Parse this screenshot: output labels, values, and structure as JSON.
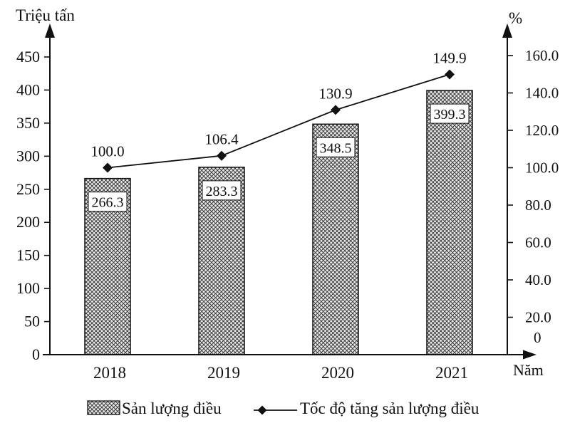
{
  "chart_data": {
    "type": "bar+line",
    "categories": [
      "2018",
      "2019",
      "2020",
      "2021"
    ],
    "series": [
      {
        "name": "Sản lượng điều",
        "type": "bar",
        "axis": "left",
        "values": [
          266.3,
          283.3,
          348.5,
          399.3
        ],
        "labels": [
          "266.3",
          "283.3",
          "348.5",
          "399.3"
        ]
      },
      {
        "name": "Tốc độ tăng sản lượng điều",
        "type": "line",
        "axis": "right",
        "values": [
          100.0,
          106.4,
          130.9,
          149.9
        ],
        "labels": [
          "100.0",
          "106.4",
          "130.9",
          "149.9"
        ]
      }
    ],
    "left_axis": {
      "title": "Triệu tấn",
      "min": 0,
      "max": 450,
      "step": 50,
      "tick_labels": [
        "0",
        "50",
        "100",
        "150",
        "200",
        "250",
        "300",
        "350",
        "400",
        "450"
      ]
    },
    "right_axis": {
      "title": "%",
      "min": 0,
      "max": 160,
      "step": 20,
      "tick_labels": [
        "0",
        "20.0",
        "40.0",
        "60.0",
        "80.0",
        "100.0",
        "120.0",
        "140.0",
        "160.0"
      ]
    },
    "x_axis": {
      "title": "Năm"
    },
    "legend": {
      "bar_label": "Sản lượng điều",
      "line_label": "Tốc độ tăng sản lượng điều"
    },
    "grid": "off",
    "legend_position": "bottom",
    "colors": {
      "ink": "#111111",
      "bar_hatch": "#2b2b2b",
      "bar_background": "#e7e7e7",
      "value_box_background": "#ffffff"
    }
  }
}
